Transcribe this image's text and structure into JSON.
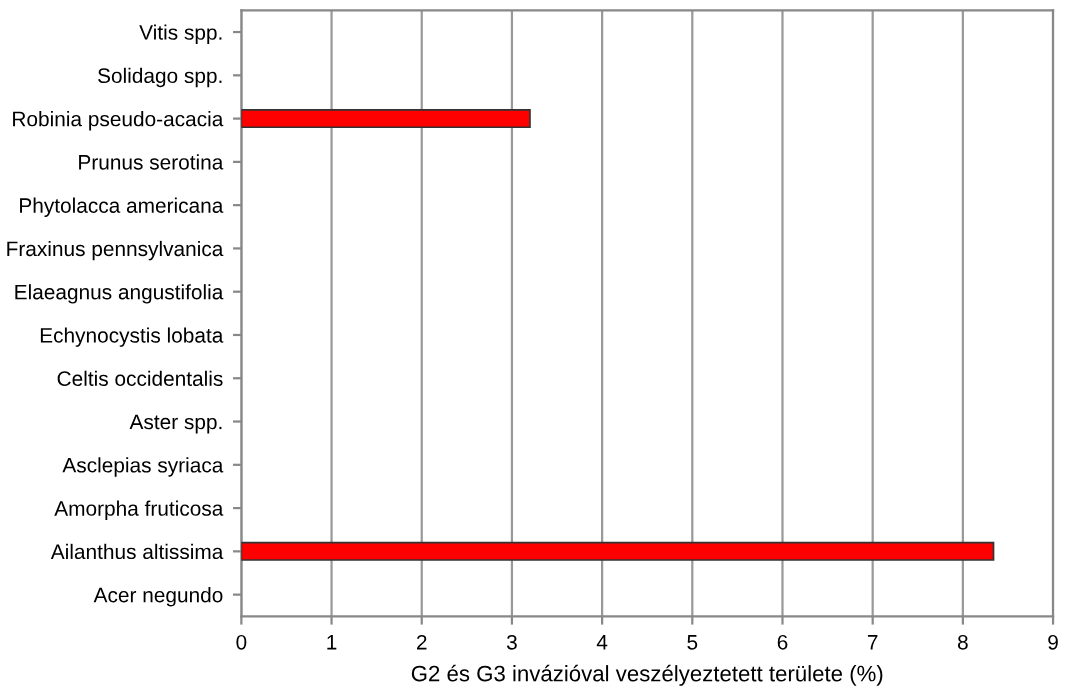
{
  "chart_data": {
    "type": "bar",
    "orientation": "horizontal",
    "xlabel": "G2 és G3 invázióval veszélyeztetett területe (%)",
    "categories": [
      "Vitis spp.",
      "Solidago spp.",
      "Robinia pseudo-acacia",
      "Prunus serotina",
      "Phytolacca americana",
      "Fraxinus pennsylvanica",
      "Elaeagnus angustifolia",
      "Echynocystis lobata",
      "Celtis occidentalis",
      "Aster spp.",
      "Asclepias syriaca",
      "Amorpha fruticosa",
      "Ailanthus altissima",
      "Acer negundo"
    ],
    "values": [
      0,
      0,
      3.2,
      0,
      0,
      0,
      0,
      0,
      0,
      0,
      0,
      0,
      8.34,
      0
    ],
    "color": "#ff0000",
    "xlim": [
      0,
      9
    ],
    "xticks": [
      0,
      1,
      2,
      3,
      4,
      5,
      6,
      7,
      8,
      9
    ],
    "grid": "x",
    "legend": false
  }
}
